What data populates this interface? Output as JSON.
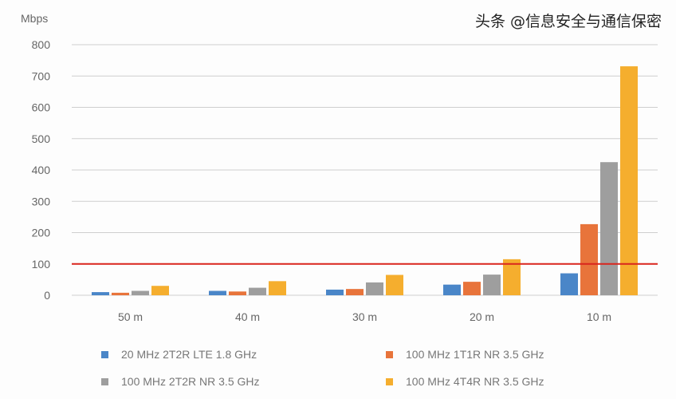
{
  "chart_data": {
    "type": "bar",
    "ylabel": "Mbps",
    "ylim": [
      0,
      800
    ],
    "yticks": [
      "0",
      "100",
      "200",
      "300",
      "400",
      "500",
      "600",
      "700",
      "800"
    ],
    "grid": true,
    "categories": [
      "50 m",
      "40 m",
      "30 m",
      "20 m",
      "10 m"
    ],
    "series": [
      {
        "name": "20 MHz 2T2R LTE 1.8 GHz",
        "color": "#4a86c8",
        "values": [
          10,
          14,
          18,
          34,
          70
        ]
      },
      {
        "name": "100 MHz 1T1R NR 3.5 GHz",
        "color": "#e8743b",
        "values": [
          8,
          12,
          20,
          43,
          227
        ]
      },
      {
        "name": "100 MHz 2T2R NR 3.5 GHz",
        "color": "#9e9e9e",
        "values": [
          14,
          24,
          41,
          66,
          425
        ]
      },
      {
        "name": "100 MHz 4T4R NR 3.5 GHz",
        "color": "#f5ae2e",
        "values": [
          30,
          45,
          65,
          115,
          731
        ]
      }
    ],
    "reference_line": {
      "value": 100,
      "color": "#d9251d"
    },
    "legend_position": "bottom"
  },
  "watermark": "头条 @信息安全与通信保密"
}
